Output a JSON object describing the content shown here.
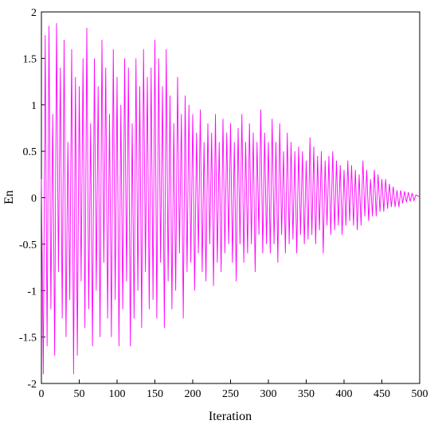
{
  "chart_data": {
    "type": "line",
    "xlabel": "Iteration",
    "ylabel": "En",
    "xlim": [
      0,
      500
    ],
    "ylim": [
      -2,
      2
    ],
    "xticks": [
      0,
      50,
      100,
      150,
      200,
      250,
      300,
      350,
      400,
      450,
      500
    ],
    "yticks": [
      -2,
      -1.5,
      -1,
      -0.5,
      0,
      0.5,
      1,
      1.5,
      2
    ],
    "x": [
      0,
      2.5,
      5,
      7.5,
      10,
      12.5,
      15,
      17.5,
      20,
      22.5,
      25,
      27.5,
      30,
      32.5,
      35,
      37.5,
      40,
      42.5,
      45,
      47.5,
      50,
      52.5,
      55,
      57.5,
      60,
      62.5,
      65,
      67.5,
      70,
      72.5,
      75,
      77.5,
      80,
      82.5,
      85,
      87.5,
      90,
      92.5,
      95,
      97.5,
      100,
      102.5,
      105,
      107.5,
      110,
      112.5,
      115,
      117.5,
      120,
      122.5,
      125,
      127.5,
      130,
      132.5,
      135,
      137.5,
      140,
      142.5,
      145,
      147.5,
      150,
      152.5,
      155,
      157.5,
      160,
      162.5,
      165,
      167.5,
      170,
      172.5,
      175,
      177.5,
      180,
      182.5,
      185,
      187.5,
      190,
      192.5,
      195,
      197.5,
      200,
      202.5,
      205,
      207.5,
      210,
      212.5,
      215,
      217.5,
      220,
      222.5,
      225,
      227.5,
      230,
      232.5,
      235,
      237.5,
      240,
      242.5,
      245,
      247.5,
      250,
      252.5,
      255,
      257.5,
      260,
      262.5,
      265,
      267.5,
      270,
      272.5,
      275,
      277.5,
      280,
      282.5,
      285,
      287.5,
      290,
      292.5,
      295,
      297.5,
      300,
      302.5,
      305,
      307.5,
      310,
      312.5,
      315,
      317.5,
      320,
      322.5,
      325,
      327.5,
      330,
      332.5,
      335,
      337.5,
      340,
      342.5,
      345,
      347.5,
      350,
      352.5,
      355,
      357.5,
      360,
      362.5,
      365,
      367.5,
      370,
      372.5,
      375,
      377.5,
      380,
      382.5,
      385,
      387.5,
      390,
      392.5,
      395,
      397.5,
      400,
      402.5,
      405,
      407.5,
      410,
      412.5,
      415,
      417.5,
      420,
      422.5,
      425,
      427.5,
      430,
      432.5,
      435,
      437.5,
      440,
      442.5,
      445,
      447.5,
      450,
      452.5,
      455,
      457.5,
      460,
      462.5,
      465,
      467.5,
      470,
      472.5,
      475,
      477.5,
      480,
      482.5,
      485,
      487.5,
      490,
      492.5,
      495,
      497.5,
      500
    ],
    "series": [
      {
        "color": "#ff00ff",
        "values": [
          0.2,
          -1.9,
          1.75,
          -1.6,
          1.85,
          -1.2,
          0.9,
          -1.7,
          1.88,
          -0.8,
          1.4,
          -1.3,
          1.7,
          -1.5,
          0.6,
          -1.1,
          1.6,
          -1.9,
          1.3,
          -1.7,
          1.2,
          -0.9,
          1.5,
          -1.4,
          1.83,
          -1.2,
          0.8,
          -1.6,
          1.5,
          -1.0,
          1.2,
          -1.5,
          1.7,
          -0.7,
          1.4,
          -1.3,
          0.9,
          -1.5,
          1.6,
          -1.1,
          1.3,
          -1.6,
          1.0,
          -1.2,
          1.5,
          -0.9,
          1.4,
          -1.6,
          0.8,
          -1.3,
          1.5,
          -1.0,
          1.2,
          -1.4,
          1.6,
          -0.8,
          1.3,
          -1.2,
          1.4,
          -1.1,
          1.7,
          -1.3,
          1.5,
          -0.7,
          1.2,
          -1.4,
          1.6,
          -0.9,
          1.1,
          -1.2,
          0.8,
          -1.0,
          1.3,
          -0.6,
          0.9,
          -1.3,
          1.1,
          -0.8,
          1.0,
          -0.7,
          0.9,
          -1.0,
          0.7,
          -0.6,
          0.95,
          -0.8,
          0.6,
          -0.9,
          0.8,
          -0.5,
          0.7,
          -0.95,
          0.9,
          -0.7,
          0.6,
          -0.8,
          0.85,
          -0.6,
          0.7,
          -0.5,
          0.8,
          -0.7,
          0.6,
          -0.9,
          0.75,
          -0.5,
          0.9,
          -0.7,
          0.6,
          -0.6,
          0.8,
          -0.5,
          0.7,
          -0.8,
          0.6,
          -0.4,
          0.95,
          -0.6,
          0.7,
          -0.5,
          0.6,
          -0.6,
          0.85,
          -0.5,
          0.6,
          -0.7,
          0.8,
          -0.4,
          0.5,
          -0.6,
          0.7,
          -0.5,
          0.6,
          -0.45,
          0.5,
          -0.6,
          0.55,
          -0.4,
          0.5,
          -0.5,
          0.4,
          -0.45,
          0.65,
          -0.4,
          0.55,
          -0.5,
          0.45,
          -0.35,
          0.5,
          -0.6,
          0.4,
          -0.3,
          0.45,
          -0.4,
          0.5,
          -0.35,
          0.4,
          -0.3,
          0.35,
          -0.4,
          0.3,
          -0.3,
          0.4,
          -0.25,
          0.35,
          -0.3,
          0.3,
          -0.35,
          0.25,
          -0.3,
          0.4,
          -0.2,
          0.3,
          -0.25,
          0.2,
          -0.2,
          0.3,
          -0.2,
          0.25,
          -0.15,
          0.2,
          -0.15,
          0.2,
          -0.12,
          0.15,
          -0.1,
          0.12,
          -0.1,
          0.08,
          -0.1,
          0.08,
          -0.06,
          0.07,
          -0.05,
          0.06,
          -0.04,
          0.05,
          -0.03,
          0.03,
          0.02,
          0.01
        ]
      }
    ]
  }
}
